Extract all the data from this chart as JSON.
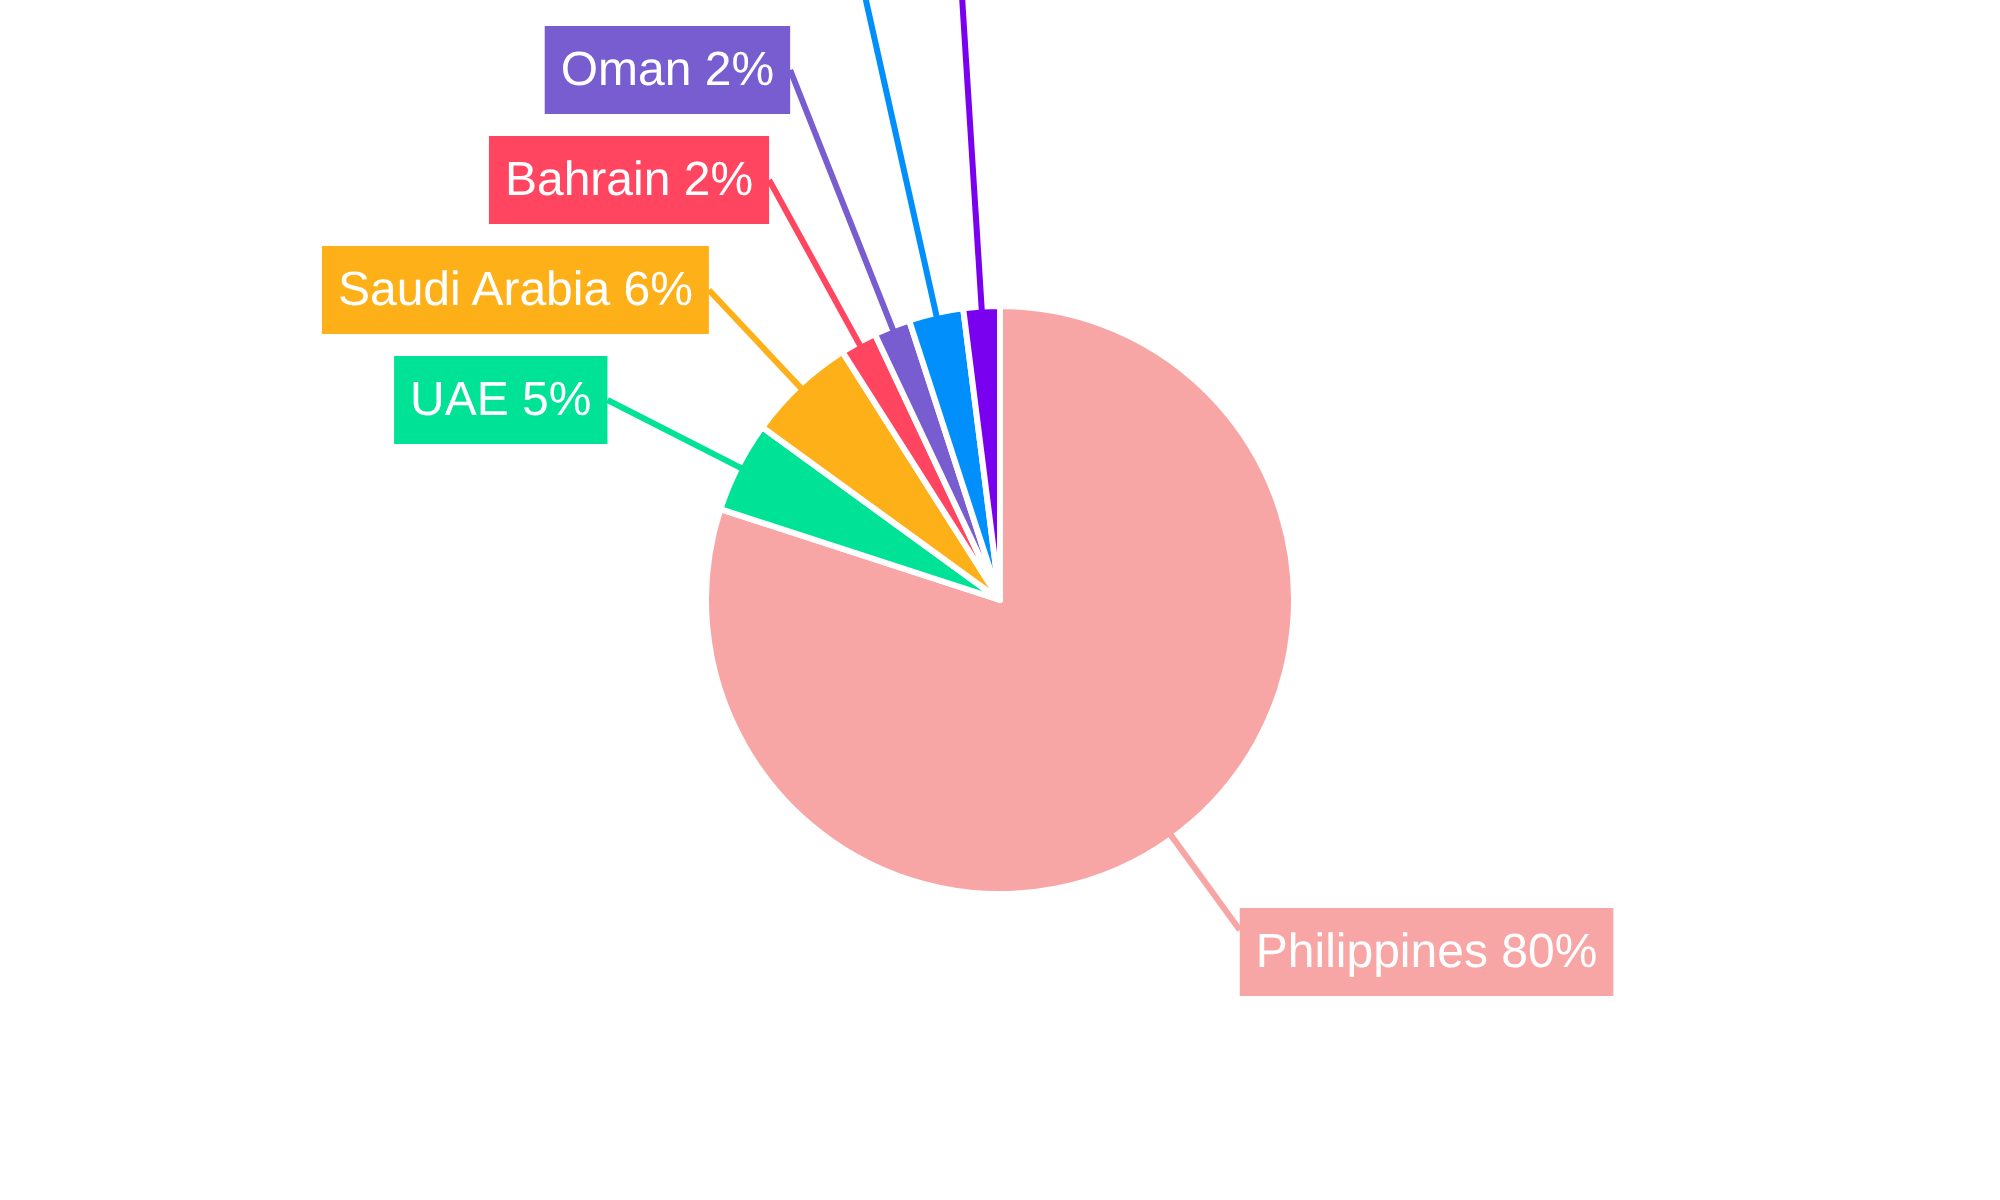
{
  "chart_data": {
    "type": "pie",
    "categories": [
      "Philippines",
      "UAE",
      "Saudi Arabia",
      "Bahrain",
      "Oman",
      null,
      null
    ],
    "values": [
      80,
      5,
      6,
      2,
      2,
      3,
      2
    ],
    "value_labels": [
      "80%",
      "5%",
      "6%",
      "2%",
      "2%",
      null,
      null
    ],
    "colors": [
      "#f8a5a5",
      "#00e396",
      "#feb019",
      "#ff4560",
      "#775dd0",
      "#008ffb",
      "#7a00f0"
    ]
  }
}
